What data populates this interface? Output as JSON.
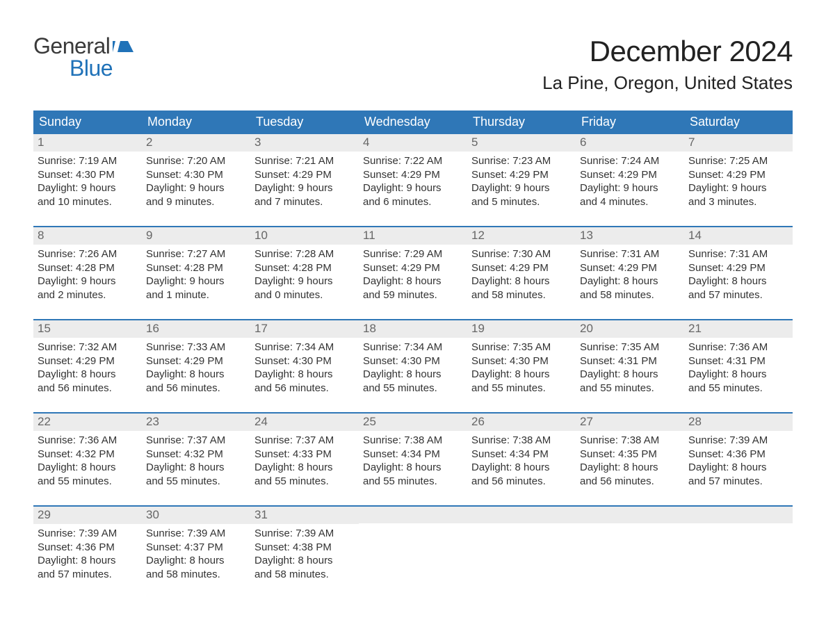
{
  "brand": {
    "word1": "General",
    "word2": "Blue",
    "flag_color": "#2072b8",
    "text_gray": "#3a3a3a"
  },
  "title": "December 2024",
  "location": "La Pine, Oregon, United States",
  "colors": {
    "header_bg": "#2f77b7",
    "header_text": "#ffffff",
    "daynum_bg": "#ececec",
    "daynum_text": "#666666",
    "body_text": "#333333",
    "rule": "#2f77b7",
    "page_bg": "#ffffff"
  },
  "day_headers": [
    "Sunday",
    "Monday",
    "Tuesday",
    "Wednesday",
    "Thursday",
    "Friday",
    "Saturday"
  ],
  "weeks": [
    [
      {
        "n": "1",
        "sunrise": "Sunrise: 7:19 AM",
        "sunset": "Sunset: 4:30 PM",
        "d1": "Daylight: 9 hours",
        "d2": "and 10 minutes."
      },
      {
        "n": "2",
        "sunrise": "Sunrise: 7:20 AM",
        "sunset": "Sunset: 4:30 PM",
        "d1": "Daylight: 9 hours",
        "d2": "and 9 minutes."
      },
      {
        "n": "3",
        "sunrise": "Sunrise: 7:21 AM",
        "sunset": "Sunset: 4:29 PM",
        "d1": "Daylight: 9 hours",
        "d2": "and 7 minutes."
      },
      {
        "n": "4",
        "sunrise": "Sunrise: 7:22 AM",
        "sunset": "Sunset: 4:29 PM",
        "d1": "Daylight: 9 hours",
        "d2": "and 6 minutes."
      },
      {
        "n": "5",
        "sunrise": "Sunrise: 7:23 AM",
        "sunset": "Sunset: 4:29 PM",
        "d1": "Daylight: 9 hours",
        "d2": "and 5 minutes."
      },
      {
        "n": "6",
        "sunrise": "Sunrise: 7:24 AM",
        "sunset": "Sunset: 4:29 PM",
        "d1": "Daylight: 9 hours",
        "d2": "and 4 minutes."
      },
      {
        "n": "7",
        "sunrise": "Sunrise: 7:25 AM",
        "sunset": "Sunset: 4:29 PM",
        "d1": "Daylight: 9 hours",
        "d2": "and 3 minutes."
      }
    ],
    [
      {
        "n": "8",
        "sunrise": "Sunrise: 7:26 AM",
        "sunset": "Sunset: 4:28 PM",
        "d1": "Daylight: 9 hours",
        "d2": "and 2 minutes."
      },
      {
        "n": "9",
        "sunrise": "Sunrise: 7:27 AM",
        "sunset": "Sunset: 4:28 PM",
        "d1": "Daylight: 9 hours",
        "d2": "and 1 minute."
      },
      {
        "n": "10",
        "sunrise": "Sunrise: 7:28 AM",
        "sunset": "Sunset: 4:28 PM",
        "d1": "Daylight: 9 hours",
        "d2": "and 0 minutes."
      },
      {
        "n": "11",
        "sunrise": "Sunrise: 7:29 AM",
        "sunset": "Sunset: 4:29 PM",
        "d1": "Daylight: 8 hours",
        "d2": "and 59 minutes."
      },
      {
        "n": "12",
        "sunrise": "Sunrise: 7:30 AM",
        "sunset": "Sunset: 4:29 PM",
        "d1": "Daylight: 8 hours",
        "d2": "and 58 minutes."
      },
      {
        "n": "13",
        "sunrise": "Sunrise: 7:31 AM",
        "sunset": "Sunset: 4:29 PM",
        "d1": "Daylight: 8 hours",
        "d2": "and 58 minutes."
      },
      {
        "n": "14",
        "sunrise": "Sunrise: 7:31 AM",
        "sunset": "Sunset: 4:29 PM",
        "d1": "Daylight: 8 hours",
        "d2": "and 57 minutes."
      }
    ],
    [
      {
        "n": "15",
        "sunrise": "Sunrise: 7:32 AM",
        "sunset": "Sunset: 4:29 PM",
        "d1": "Daylight: 8 hours",
        "d2": "and 56 minutes."
      },
      {
        "n": "16",
        "sunrise": "Sunrise: 7:33 AM",
        "sunset": "Sunset: 4:29 PM",
        "d1": "Daylight: 8 hours",
        "d2": "and 56 minutes."
      },
      {
        "n": "17",
        "sunrise": "Sunrise: 7:34 AM",
        "sunset": "Sunset: 4:30 PM",
        "d1": "Daylight: 8 hours",
        "d2": "and 56 minutes."
      },
      {
        "n": "18",
        "sunrise": "Sunrise: 7:34 AM",
        "sunset": "Sunset: 4:30 PM",
        "d1": "Daylight: 8 hours",
        "d2": "and 55 minutes."
      },
      {
        "n": "19",
        "sunrise": "Sunrise: 7:35 AM",
        "sunset": "Sunset: 4:30 PM",
        "d1": "Daylight: 8 hours",
        "d2": "and 55 minutes."
      },
      {
        "n": "20",
        "sunrise": "Sunrise: 7:35 AM",
        "sunset": "Sunset: 4:31 PM",
        "d1": "Daylight: 8 hours",
        "d2": "and 55 minutes."
      },
      {
        "n": "21",
        "sunrise": "Sunrise: 7:36 AM",
        "sunset": "Sunset: 4:31 PM",
        "d1": "Daylight: 8 hours",
        "d2": "and 55 minutes."
      }
    ],
    [
      {
        "n": "22",
        "sunrise": "Sunrise: 7:36 AM",
        "sunset": "Sunset: 4:32 PM",
        "d1": "Daylight: 8 hours",
        "d2": "and 55 minutes."
      },
      {
        "n": "23",
        "sunrise": "Sunrise: 7:37 AM",
        "sunset": "Sunset: 4:32 PM",
        "d1": "Daylight: 8 hours",
        "d2": "and 55 minutes."
      },
      {
        "n": "24",
        "sunrise": "Sunrise: 7:37 AM",
        "sunset": "Sunset: 4:33 PM",
        "d1": "Daylight: 8 hours",
        "d2": "and 55 minutes."
      },
      {
        "n": "25",
        "sunrise": "Sunrise: 7:38 AM",
        "sunset": "Sunset: 4:34 PM",
        "d1": "Daylight: 8 hours",
        "d2": "and 55 minutes."
      },
      {
        "n": "26",
        "sunrise": "Sunrise: 7:38 AM",
        "sunset": "Sunset: 4:34 PM",
        "d1": "Daylight: 8 hours",
        "d2": "and 56 minutes."
      },
      {
        "n": "27",
        "sunrise": "Sunrise: 7:38 AM",
        "sunset": "Sunset: 4:35 PM",
        "d1": "Daylight: 8 hours",
        "d2": "and 56 minutes."
      },
      {
        "n": "28",
        "sunrise": "Sunrise: 7:39 AM",
        "sunset": "Sunset: 4:36 PM",
        "d1": "Daylight: 8 hours",
        "d2": "and 57 minutes."
      }
    ],
    [
      {
        "n": "29",
        "sunrise": "Sunrise: 7:39 AM",
        "sunset": "Sunset: 4:36 PM",
        "d1": "Daylight: 8 hours",
        "d2": "and 57 minutes."
      },
      {
        "n": "30",
        "sunrise": "Sunrise: 7:39 AM",
        "sunset": "Sunset: 4:37 PM",
        "d1": "Daylight: 8 hours",
        "d2": "and 58 minutes."
      },
      {
        "n": "31",
        "sunrise": "Sunrise: 7:39 AM",
        "sunset": "Sunset: 4:38 PM",
        "d1": "Daylight: 8 hours",
        "d2": "and 58 minutes."
      },
      null,
      null,
      null,
      null
    ]
  ]
}
